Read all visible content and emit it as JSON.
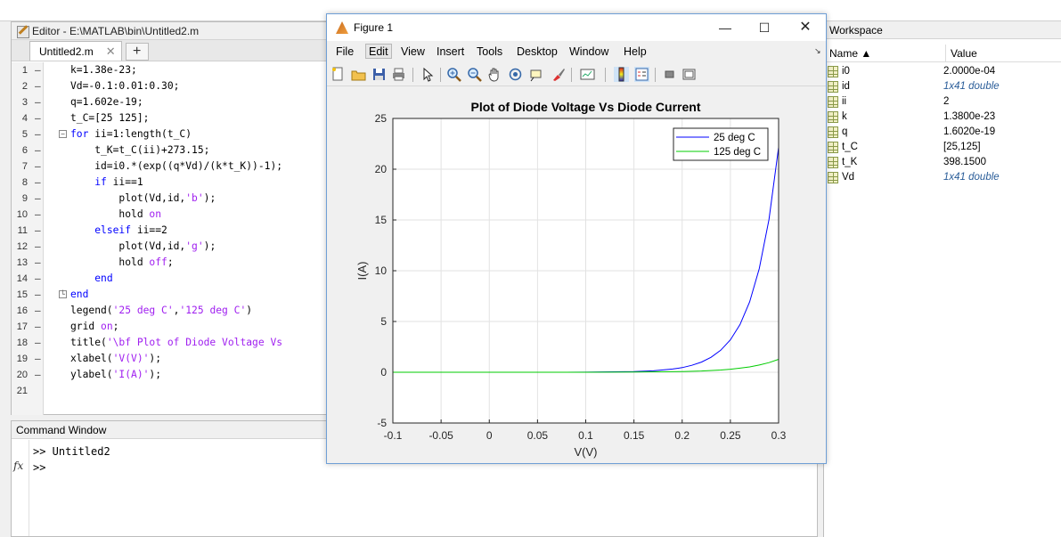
{
  "editor": {
    "title": "Editor - E:\\MATLAB\\bin\\Untitled2.m",
    "tab_label": "Untitled2.m",
    "tab_close": "✕",
    "tab_add": "+",
    "lines": [
      {
        "n": "1",
        "m": "—",
        "code": [
          {
            "t": "k=1.38e-23;",
            "c": ""
          }
        ]
      },
      {
        "n": "2",
        "m": "—",
        "code": [
          {
            "t": "Vd=-0.1:0.01:0.30;",
            "c": ""
          }
        ]
      },
      {
        "n": "3",
        "m": "—",
        "code": [
          {
            "t": "q=1.602e-19;",
            "c": ""
          }
        ]
      },
      {
        "n": "4",
        "m": "—",
        "code": [
          {
            "t": "t_C=[25 125];",
            "c": ""
          }
        ]
      },
      {
        "n": "5",
        "m": "—",
        "fold": "−",
        "code": [
          {
            "t": "for",
            "c": "kw"
          },
          {
            "t": " ii=1:length(t_C)",
            "c": ""
          }
        ]
      },
      {
        "n": "6",
        "m": "—",
        "code": [
          {
            "t": "    t_K=t_C(ii)+273.15;",
            "c": ""
          }
        ]
      },
      {
        "n": "7",
        "m": "—",
        "code": [
          {
            "t": "    id=i0.*(exp((q*Vd)/(k*t_K))-1);",
            "c": ""
          }
        ]
      },
      {
        "n": "8",
        "m": "—",
        "code": [
          {
            "t": "    ",
            "c": ""
          },
          {
            "t": "if",
            "c": "kw"
          },
          {
            "t": " ii==1",
            "c": ""
          }
        ]
      },
      {
        "n": "9",
        "m": "—",
        "code": [
          {
            "t": "        plot(Vd,id,",
            "c": ""
          },
          {
            "t": "'b'",
            "c": "str"
          },
          {
            "t": ");",
            "c": ""
          }
        ]
      },
      {
        "n": "10",
        "m": "—",
        "code": [
          {
            "t": "        hold ",
            "c": ""
          },
          {
            "t": "on",
            "c": "str"
          }
        ]
      },
      {
        "n": "11",
        "m": "—",
        "code": [
          {
            "t": "    ",
            "c": ""
          },
          {
            "t": "elseif",
            "c": "kw"
          },
          {
            "t": " ii==2",
            "c": ""
          }
        ]
      },
      {
        "n": "12",
        "m": "—",
        "code": [
          {
            "t": "        plot(Vd,id,",
            "c": ""
          },
          {
            "t": "'g'",
            "c": "str"
          },
          {
            "t": ");",
            "c": ""
          }
        ]
      },
      {
        "n": "13",
        "m": "—",
        "code": [
          {
            "t": "        hold ",
            "c": ""
          },
          {
            "t": "off",
            "c": "str"
          },
          {
            "t": ";",
            "c": ""
          }
        ]
      },
      {
        "n": "14",
        "m": "—",
        "code": [
          {
            "t": "    ",
            "c": ""
          },
          {
            "t": "end",
            "c": "kw"
          }
        ]
      },
      {
        "n": "15",
        "m": "—",
        "fold": "└",
        "code": [
          {
            "t": "end",
            "c": "kw"
          }
        ]
      },
      {
        "n": "16",
        "m": "—",
        "code": [
          {
            "t": "legend(",
            "c": ""
          },
          {
            "t": "'25 deg C'",
            "c": "str"
          },
          {
            "t": ",",
            "c": ""
          },
          {
            "t": "'125 deg C'",
            "c": "str"
          },
          {
            "t": ")",
            "c": ""
          }
        ]
      },
      {
        "n": "17",
        "m": "—",
        "code": [
          {
            "t": "grid ",
            "c": ""
          },
          {
            "t": "on",
            "c": "str"
          },
          {
            "t": ";",
            "c": ""
          }
        ]
      },
      {
        "n": "18",
        "m": "—",
        "code": [
          {
            "t": "title(",
            "c": ""
          },
          {
            "t": "'\\bf Plot of Diode Voltage Vs",
            "c": "str"
          }
        ]
      },
      {
        "n": "19",
        "m": "—",
        "code": [
          {
            "t": "xlabel(",
            "c": ""
          },
          {
            "t": "'V(V)'",
            "c": "str"
          },
          {
            "t": ");",
            "c": ""
          }
        ]
      },
      {
        "n": "20",
        "m": "—",
        "code": [
          {
            "t": "ylabel(",
            "c": ""
          },
          {
            "t": "'I(A)'",
            "c": "str"
          },
          {
            "t": ");",
            "c": ""
          }
        ]
      },
      {
        "n": "21",
        "m": "",
        "code": []
      }
    ]
  },
  "command_window": {
    "title": "Command Window",
    "line1": ">> Untitled2",
    "line2": ">>",
    "fx": "fx"
  },
  "workspace": {
    "title": "Workspace",
    "col_name": "Name ▲",
    "col_value": "Value",
    "rows": [
      {
        "name": "i0",
        "value": "2.0000e-04",
        "italic": false
      },
      {
        "name": "id",
        "value": "1x41 double",
        "italic": true
      },
      {
        "name": "ii",
        "value": "2",
        "italic": false
      },
      {
        "name": "k",
        "value": "1.3800e-23",
        "italic": false
      },
      {
        "name": "q",
        "value": "1.6020e-19",
        "italic": false
      },
      {
        "name": "t_C",
        "value": "[25,125]",
        "italic": false
      },
      {
        "name": "t_K",
        "value": "398.1500",
        "italic": false
      },
      {
        "name": "Vd",
        "value": "1x41 double",
        "italic": true
      }
    ]
  },
  "figure": {
    "title": "Figure 1",
    "menus": [
      "File",
      "Edit",
      "View",
      "Insert",
      "Tools",
      "Desktop",
      "Window",
      "Help"
    ],
    "selected_menu": "Edit",
    "dock_arrow": "↘",
    "toolbar_icons": [
      "new-figure-icon",
      "open-file-icon",
      "save-icon",
      "print-icon",
      "pointer-icon",
      "zoom-in-icon",
      "zoom-out-icon",
      "pan-icon",
      "rotate-icon",
      "data-cursor-icon",
      "brush-icon",
      "link-plot-icon",
      "colorbar-icon",
      "legend-icon",
      "hide-plot-tools-icon",
      "show-plot-tools-icon"
    ]
  },
  "chart_data": {
    "type": "line",
    "title": "Plot of Diode Voltage Vs Diode Current",
    "xlabel": "V(V)",
    "ylabel": "I(A)",
    "xlim": [
      -0.1,
      0.3
    ],
    "ylim": [
      -5,
      25
    ],
    "xticks": [
      "-0.1",
      "-0.05",
      "0",
      "0.05",
      "0.1",
      "0.15",
      "0.2",
      "0.25",
      "0.3"
    ],
    "yticks": [
      "-5",
      "0",
      "5",
      "10",
      "15",
      "20",
      "25"
    ],
    "grid": true,
    "legend_position": "top-right",
    "series": [
      {
        "name": "25 deg C",
        "color": "#0000ff",
        "x": [
          -0.1,
          -0.05,
          0,
          0.05,
          0.1,
          0.15,
          0.17,
          0.19,
          0.2,
          0.21,
          0.22,
          0.23,
          0.24,
          0.25,
          0.26,
          0.27,
          0.28,
          0.29,
          0.3
        ],
        "y": [
          -0.0002,
          -0.0002,
          0,
          0.0013,
          0.0096,
          0.066,
          0.144,
          0.312,
          0.46,
          0.68,
          1.0,
          1.47,
          2.17,
          3.19,
          4.7,
          6.93,
          10.21,
          15.04,
          22.16
        ]
      },
      {
        "name": "125 deg C",
        "color": "#00cc00",
        "x": [
          -0.1,
          -0.05,
          0,
          0.05,
          0.1,
          0.15,
          0.2,
          0.22,
          0.24,
          0.25,
          0.26,
          0.27,
          0.28,
          0.29,
          0.3
        ],
        "y": [
          -0.0002,
          -0.0002,
          0,
          0.0005,
          0.0034,
          0.015,
          0.068,
          0.123,
          0.22,
          0.3,
          0.4,
          0.53,
          0.71,
          0.95,
          1.27
        ]
      }
    ]
  }
}
